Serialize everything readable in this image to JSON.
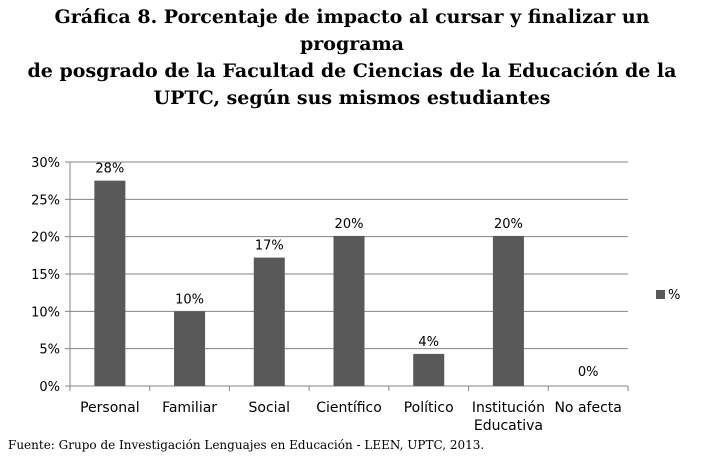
{
  "chart_data": {
    "type": "bar",
    "title": "Gráfica 8. Porcentaje de impacto al cursar y finalizar un programa de posgrado de la Facultad de Ciencias de la Educación de la UPTC, según sus mismos estudiantes",
    "title_lines": [
      "Gráfica 8. Porcentaje de impacto al cursar y finalizar un programa",
      "de posgrado de la Facultad de Ciencias de la Educación de la",
      "UPTC, según sus mismos estudiantes"
    ],
    "categories": [
      [
        "Personal"
      ],
      [
        "Familiar"
      ],
      [
        "Social"
      ],
      [
        "Científico"
      ],
      [
        "Político"
      ],
      [
        "Institución",
        "Educativa"
      ],
      [
        "No afecta"
      ]
    ],
    "series": [
      {
        "name": "%",
        "values": [
          0.275,
          0.1,
          0.172,
          0.201,
          0.043,
          0.201,
          0.0
        ]
      }
    ],
    "data_labels": [
      "28%",
      "10%",
      "17%",
      "20%",
      "4%",
      "20%",
      "0%"
    ],
    "yticks": [
      "0%",
      "5%",
      "10%",
      "15%",
      "20%",
      "25%",
      "30%"
    ],
    "ylim": [
      0,
      0.3
    ],
    "xlabel": "",
    "ylabel": "",
    "grid": true,
    "legend": "right",
    "colors": {
      "bar": "#595959",
      "grid": "#858585",
      "axis": "#858585"
    }
  },
  "source": "Fuente: Grupo de Investigación Lenguajes en Educación - LEEN, UPTC, 2013."
}
